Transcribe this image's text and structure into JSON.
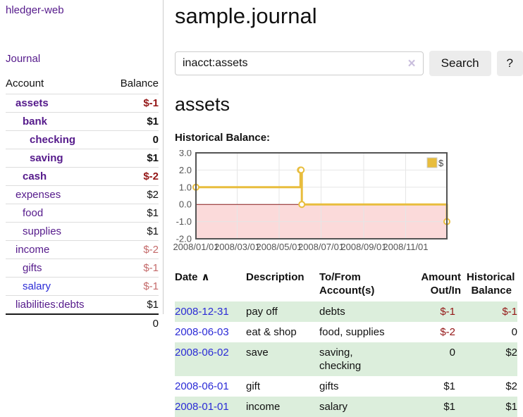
{
  "app": {
    "brand": "hledger-web"
  },
  "sidebar": {
    "journal_link": "Journal",
    "accounts": {
      "col_account": "Account",
      "col_balance": "Balance",
      "rows": [
        {
          "name": "assets",
          "indent": 1,
          "balance": "$-1",
          "bold": true,
          "neg": "strong"
        },
        {
          "name": "bank",
          "indent": 2,
          "balance": "$1",
          "bold": true
        },
        {
          "name": "checking",
          "indent": 3,
          "balance": "0",
          "bold": true
        },
        {
          "name": "saving",
          "indent": 3,
          "balance": "$1",
          "bold": true
        },
        {
          "name": "cash",
          "indent": 2,
          "balance": "$-2",
          "bold": true,
          "neg": "strong"
        },
        {
          "name": "expenses",
          "indent": 1,
          "balance": "$2"
        },
        {
          "name": "food",
          "indent": 2,
          "balance": "$1"
        },
        {
          "name": "supplies",
          "indent": 2,
          "balance": "$1"
        },
        {
          "name": "income",
          "indent": 1,
          "balance": "$-2",
          "neg": "soft"
        },
        {
          "name": "gifts",
          "indent": 2,
          "balance": "$-1",
          "neg": "soft"
        },
        {
          "name": "salary",
          "indent": 2,
          "balance": "$-1",
          "neg": "soft",
          "link_style": "blue"
        },
        {
          "name": "liabilities:debts",
          "indent": 1,
          "balance": "$1"
        }
      ],
      "total": "0"
    }
  },
  "main": {
    "title": "sample.journal",
    "search": {
      "value": "inacct:assets",
      "clear_icon": "×",
      "search_button": "Search",
      "help_button": "?"
    },
    "account_heading": "assets",
    "chart_title": "Historical Balance:"
  },
  "register": {
    "headers": [
      {
        "lines": [
          "Date"
        ],
        "sort_icon": "∧",
        "align": "left"
      },
      {
        "lines": [
          "Description"
        ],
        "align": "left"
      },
      {
        "lines": [
          "To/From",
          "Account(s)"
        ],
        "align": "left"
      },
      {
        "lines": [
          "Amount",
          "Out/In"
        ],
        "align": "right"
      },
      {
        "lines": [
          "Historical",
          "Balance"
        ],
        "align": "right"
      }
    ],
    "rows": [
      {
        "date": "2008-12-31",
        "description": "pay off",
        "accounts_lines": [
          "debts"
        ],
        "amount": "$-1",
        "balance": "$-1"
      },
      {
        "date": "2008-06-03",
        "description": "eat & shop",
        "accounts_lines": [
          "food, supplies"
        ],
        "amount": "$-2",
        "balance": "0"
      },
      {
        "date": "2008-06-02",
        "description": "save",
        "accounts_lines": [
          "saving,",
          "checking"
        ],
        "amount": "0",
        "balance": "$2"
      },
      {
        "date": "2008-06-01",
        "description": "gift",
        "accounts_lines": [
          "gifts"
        ],
        "amount": "$1",
        "balance": "$2"
      },
      {
        "date": "2008-01-01",
        "description": "income",
        "accounts_lines": [
          "salary"
        ],
        "amount": "$1",
        "balance": "$1"
      }
    ]
  },
  "chart_data": {
    "type": "line",
    "title": "Historical Balance:",
    "series": [
      {
        "name": "$",
        "step": true,
        "color": "#e8bd3d",
        "points": [
          [
            "2008-01-01",
            1
          ],
          [
            "2008-06-01",
            2
          ],
          [
            "2008-06-02",
            2
          ],
          [
            "2008-06-03",
            0
          ],
          [
            "2008-12-31",
            -1
          ]
        ]
      }
    ],
    "xlim": [
      "2008-01-01",
      "2008-12-31"
    ],
    "ylim": [
      -2,
      3
    ],
    "yticks": [
      "3.0",
      "2.0",
      "1.0",
      "0.0",
      "-1.0",
      "-2.0"
    ],
    "xticks": [
      "2008/01/01",
      "2008/03/01",
      "2008/05/01",
      "2008/07/01",
      "2008/09/01",
      "2008/11/01"
    ],
    "legend": {
      "label": "$",
      "position": "top-right"
    },
    "grid": true
  },
  "colors": {
    "link_purple": "#551a8b",
    "link_blue": "#2b2bd6",
    "negative_strong": "#941616",
    "negative_soft": "#c46a6a",
    "row_stripe_green": "#dceedc",
    "chart_line_gold": "#e8bd3d",
    "chart_negative_fill": "#fbdada",
    "chart_zero_line": "#8b1a1a",
    "chart_border": "#545454",
    "chart_grid": "#e6e6e6"
  }
}
